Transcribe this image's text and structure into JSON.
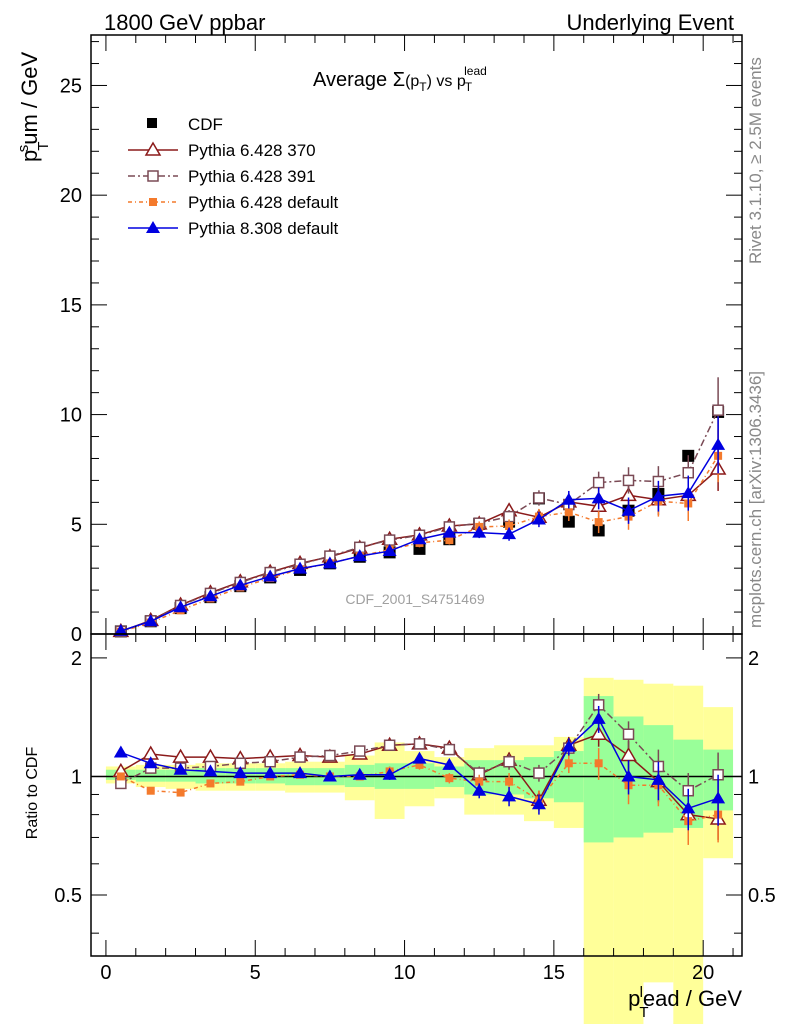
{
  "header": {
    "left": "1800 GeV ppbar",
    "right": "Underlying Event"
  },
  "side_labels": {
    "rivet": "Rivet 3.1.10, ≥ 2.5M events",
    "mcplots": "mcplots.cern.ch [arXiv:1306.3436]"
  },
  "watermark": "CDF_2001_S4751469",
  "ratio_ylabel": "Ratio to CDF",
  "colors": {
    "cdf": "#000000",
    "py370": "#8b1a1a",
    "py391": "#7a4a55",
    "pydef": "#f47a2c",
    "py8": "#0000e0",
    "band_yellow": "#ffff99",
    "band_green": "#99ff99"
  },
  "chart_data": [
    {
      "type": "scatter",
      "panel": "main",
      "title_parts": {
        "a": "Average ",
        "sigma": "Σ",
        "b": "(p",
        "b_sub": "T",
        "c": ")",
        "d": " vs p",
        "d_sub": "T",
        "d_sup": "lead"
      },
      "ylabel_parts": {
        "p": "p",
        "sub": "T",
        "sup": "s",
        "rest": "um / GeV"
      },
      "xlim": [
        -0.5,
        21.3
      ],
      "ylim": [
        0,
        27.3
      ],
      "yticks": [
        0,
        5,
        10,
        15,
        20,
        25
      ],
      "x": [
        0.5,
        1.5,
        2.5,
        3.5,
        4.5,
        5.5,
        6.5,
        7.5,
        8.5,
        9.5,
        10.5,
        11.5,
        12.5,
        13.5,
        14.5,
        15.5,
        16.5,
        17.5,
        18.5,
        19.5,
        20.5
      ],
      "series": [
        {
          "name": "CDF",
          "key": "cdf",
          "marker": "square-filled",
          "values": [
            0.12,
            0.58,
            1.18,
            1.68,
            2.18,
            2.58,
            2.92,
            3.22,
            3.52,
            3.72,
            3.88,
            4.32,
            5.02,
            5.12,
            6.18,
            5.12,
            4.72,
            5.62,
            6.38,
            8.12,
            10.12
          ],
          "err": [
            0,
            0,
            0,
            0,
            0,
            0,
            0,
            0,
            0,
            0,
            0,
            0,
            0,
            0,
            0,
            0,
            0,
            0,
            0,
            0,
            0
          ]
        },
        {
          "name": "Pythia 6.428 370",
          "key": "py370",
          "marker": "triangle-open",
          "dash": "",
          "values": [
            0.12,
            0.62,
            1.32,
            1.88,
            2.38,
            2.82,
            3.22,
            3.52,
            3.92,
            4.32,
            4.52,
            4.92,
            5.02,
            5.62,
            5.32,
            6.02,
            5.82,
            6.32,
            6.12,
            6.32,
            7.52
          ],
          "err": [
            0.02,
            0.05,
            0.08,
            0.1,
            0.1,
            0.12,
            0.12,
            0.15,
            0.15,
            0.18,
            0.2,
            0.2,
            0.25,
            0.3,
            0.35,
            0.4,
            0.5,
            0.6,
            0.7,
            0.8,
            1.0
          ]
        },
        {
          "name": "Pythia 6.428 391",
          "key": "py391",
          "marker": "square-open",
          "dash": "7 3 2 3",
          "values": [
            0.12,
            0.6,
            1.3,
            1.85,
            2.35,
            2.8,
            3.18,
            3.55,
            3.95,
            4.28,
            4.5,
            4.88,
            5.05,
            5.35,
            6.2,
            5.9,
            6.9,
            7.0,
            6.95,
            7.35,
            10.2
          ],
          "err": [
            0.02,
            0.05,
            0.08,
            0.1,
            0.1,
            0.12,
            0.12,
            0.15,
            0.15,
            0.18,
            0.2,
            0.2,
            0.25,
            0.3,
            0.35,
            0.4,
            0.5,
            0.6,
            0.7,
            0.8,
            1.5
          ]
        },
        {
          "name": "Pythia 6.428 default",
          "key": "pydef",
          "marker": "square-filled-small",
          "dash": "4 3 1 3",
          "values": [
            0.1,
            0.52,
            1.08,
            1.62,
            2.12,
            2.55,
            2.95,
            3.22,
            3.55,
            3.85,
            4.15,
            4.28,
            4.88,
            4.92,
            5.35,
            5.55,
            5.1,
            5.35,
            6.05,
            5.95,
            8.12
          ],
          "err": [
            0.02,
            0.05,
            0.08,
            0.1,
            0.1,
            0.12,
            0.12,
            0.15,
            0.15,
            0.18,
            0.2,
            0.2,
            0.25,
            0.3,
            0.35,
            0.4,
            0.5,
            0.6,
            0.7,
            0.8,
            1.2
          ]
        },
        {
          "name": "Pythia 8.308 default",
          "key": "py8",
          "marker": "triangle-filled",
          "dash": "",
          "values": [
            0.14,
            0.58,
            1.22,
            1.72,
            2.22,
            2.62,
            2.98,
            3.22,
            3.55,
            3.78,
            4.32,
            4.62,
            4.62,
            4.55,
            5.22,
            6.12,
            6.18,
            5.62,
            6.28,
            6.42,
            8.62
          ],
          "err": [
            0.02,
            0.05,
            0.08,
            0.1,
            0.1,
            0.12,
            0.12,
            0.15,
            0.15,
            0.18,
            0.2,
            0.2,
            0.25,
            0.3,
            0.35,
            0.4,
            0.5,
            0.6,
            0.7,
            0.8,
            1.3
          ]
        }
      ],
      "legend": [
        "CDF",
        "Pythia 6.428 370",
        "Pythia 6.428 391",
        "Pythia 6.428 default",
        "Pythia 8.308 default"
      ]
    },
    {
      "type": "scatter",
      "panel": "ratio",
      "ylabel": "Ratio to CDF",
      "xlabel_parts": {
        "p": "p",
        "sub": "T",
        "sup": "l",
        "rest": "ead / GeV"
      },
      "xlim": [
        -0.5,
        21.3
      ],
      "ylim": [
        0.35,
        2.3
      ],
      "yticks": [
        0.5,
        1,
        2
      ],
      "yticklabels": [
        "0.5",
        "1",
        "2"
      ],
      "xticks": [
        0,
        5,
        10,
        15,
        20
      ],
      "xticklabels": [
        "0",
        "5",
        "10",
        "15",
        "20"
      ],
      "bins": [
        [
          0,
          1
        ],
        [
          1,
          2
        ],
        [
          2,
          3
        ],
        [
          3,
          4
        ],
        [
          4,
          5
        ],
        [
          5,
          6
        ],
        [
          6,
          7
        ],
        [
          7,
          8
        ],
        [
          8,
          9
        ],
        [
          9,
          10
        ],
        [
          10,
          11
        ],
        [
          11,
          12
        ],
        [
          12,
          13
        ],
        [
          13,
          14
        ],
        [
          14,
          15
        ],
        [
          15,
          16
        ],
        [
          16,
          17
        ],
        [
          17,
          18
        ],
        [
          18,
          19
        ],
        [
          19,
          20
        ],
        [
          20,
          21
        ]
      ],
      "band_yellow": [
        [
          0.96,
          1.06
        ],
        [
          0.94,
          1.07
        ],
        [
          0.93,
          1.07
        ],
        [
          0.92,
          1.08
        ],
        [
          0.92,
          1.08
        ],
        [
          0.92,
          1.08
        ],
        [
          0.91,
          1.09
        ],
        [
          0.91,
          1.09
        ],
        [
          0.87,
          1.13
        ],
        [
          0.78,
          1.22
        ],
        [
          0.84,
          1.16
        ],
        [
          0.88,
          1.12
        ],
        [
          0.8,
          1.18
        ],
        [
          0.8,
          1.2
        ],
        [
          0.77,
          1.2
        ],
        [
          0.74,
          1.26
        ],
        [
          0.2,
          1.78
        ],
        [
          0.2,
          1.76
        ],
        [
          0.3,
          1.72
        ],
        [
          0.2,
          1.7
        ],
        [
          0.62,
          1.5
        ]
      ],
      "band_green": [
        [
          0.98,
          1.04
        ],
        [
          0.97,
          1.04
        ],
        [
          0.97,
          1.04
        ],
        [
          0.96,
          1.05
        ],
        [
          0.96,
          1.05
        ],
        [
          0.96,
          1.05
        ],
        [
          0.95,
          1.05
        ],
        [
          0.95,
          1.05
        ],
        [
          0.94,
          1.07
        ],
        [
          0.93,
          1.08
        ],
        [
          0.93,
          1.08
        ],
        [
          0.94,
          1.06
        ],
        [
          0.9,
          1.1
        ],
        [
          0.9,
          1.1
        ],
        [
          0.88,
          1.12
        ],
        [
          0.86,
          1.16
        ],
        [
          0.68,
          1.6
        ],
        [
          0.7,
          1.42
        ],
        [
          0.72,
          1.35
        ],
        [
          0.74,
          1.24
        ],
        [
          0.82,
          1.17
        ]
      ],
      "x": [
        0.5,
        1.5,
        2.5,
        3.5,
        4.5,
        5.5,
        6.5,
        7.5,
        8.5,
        9.5,
        10.5,
        11.5,
        12.5,
        13.5,
        14.5,
        15.5,
        16.5,
        17.5,
        18.5,
        19.5,
        20.5
      ],
      "series": [
        {
          "name": "Pythia 6.428 370",
          "key": "py370",
          "marker": "triangle-open",
          "dash": "",
          "values": [
            1.03,
            1.14,
            1.12,
            1.12,
            1.11,
            1.12,
            1.13,
            1.12,
            1.14,
            1.2,
            1.21,
            1.18,
            1.01,
            1.1,
            0.87,
            1.2,
            1.28,
            1.13,
            0.97,
            0.8,
            0.78
          ],
          "err": [
            0.02,
            0.02,
            0.02,
            0.02,
            0.02,
            0.02,
            0.02,
            0.02,
            0.02,
            0.03,
            0.03,
            0.03,
            0.04,
            0.05,
            0.05,
            0.06,
            0.09,
            0.1,
            0.11,
            0.1,
            0.09
          ]
        },
        {
          "name": "Pythia 6.428 391",
          "key": "py391",
          "marker": "square-open",
          "dash": "7 3 2 3",
          "values": [
            0.96,
            1.05,
            1.05,
            1.06,
            1.08,
            1.09,
            1.12,
            1.13,
            1.16,
            1.2,
            1.21,
            1.17,
            1.02,
            1.09,
            1.02,
            1.18,
            1.52,
            1.28,
            1.06,
            0.92,
            1.01
          ],
          "err": [
            0.02,
            0.02,
            0.02,
            0.02,
            0.02,
            0.02,
            0.02,
            0.02,
            0.02,
            0.03,
            0.03,
            0.03,
            0.04,
            0.05,
            0.05,
            0.06,
            0.1,
            0.1,
            0.11,
            0.1,
            0.14
          ]
        },
        {
          "name": "Pythia 6.428 default",
          "key": "pydef",
          "marker": "square-filled-small",
          "dash": "4 3 1 3",
          "values": [
            1.0,
            0.92,
            0.91,
            0.96,
            0.97,
            1.0,
            1.01,
            1.0,
            1.0,
            1.03,
            1.07,
            0.99,
            0.97,
            0.97,
            0.87,
            1.08,
            1.08,
            0.95,
            0.95,
            0.77,
            0.8
          ],
          "err": [
            0.02,
            0.02,
            0.02,
            0.02,
            0.02,
            0.02,
            0.02,
            0.02,
            0.02,
            0.03,
            0.03,
            0.03,
            0.04,
            0.05,
            0.05,
            0.06,
            0.1,
            0.1,
            0.11,
            0.1,
            0.12
          ]
        },
        {
          "name": "Pythia 8.308 default",
          "key": "py8",
          "marker": "triangle-filled",
          "dash": "",
          "values": [
            1.15,
            1.08,
            1.04,
            1.03,
            1.02,
            1.02,
            1.02,
            1.0,
            1.01,
            1.01,
            1.11,
            1.07,
            0.92,
            0.89,
            0.85,
            1.19,
            1.4,
            1.0,
            0.98,
            0.83,
            0.88
          ],
          "err": [
            0.02,
            0.02,
            0.02,
            0.02,
            0.02,
            0.02,
            0.02,
            0.02,
            0.02,
            0.03,
            0.03,
            0.03,
            0.04,
            0.05,
            0.05,
            0.06,
            0.11,
            0.1,
            0.11,
            0.1,
            0.13
          ]
        }
      ]
    }
  ]
}
